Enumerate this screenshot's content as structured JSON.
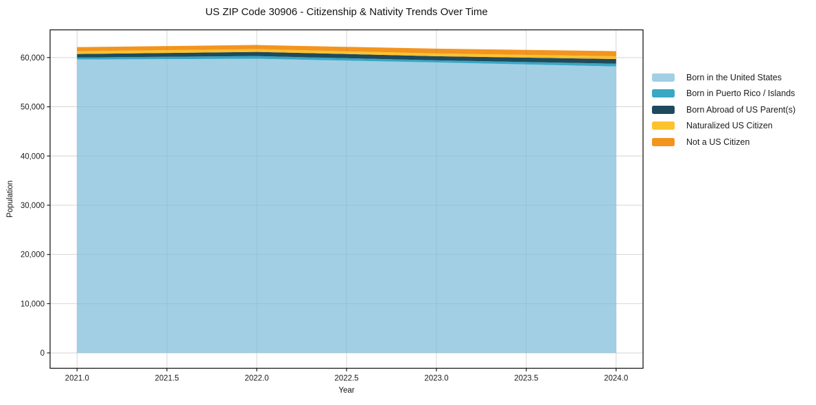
{
  "chart_data": {
    "type": "area",
    "stacked": true,
    "title": "US ZIP Code 30906 - Citizenship & Nativity Trends Over Time",
    "xlabel": "Year",
    "ylabel": "Population",
    "x": [
      2021,
      2022,
      2023,
      2024
    ],
    "series": [
      {
        "name": "Born in the United States",
        "color": "#A2CFE4",
        "values": [
          59600,
          59750,
          59000,
          58200
        ]
      },
      {
        "name": "Born in Puerto Rico / Islands",
        "color": "#38A8C5",
        "values": [
          420,
          550,
          430,
          550
        ]
      },
      {
        "name": "Born Abroad of US Parent(s)",
        "color": "#1F4A5E",
        "values": [
          700,
          850,
          850,
          950
        ]
      },
      {
        "name": "Naturalized US Citizen",
        "color": "#FCC32D",
        "values": [
          570,
          550,
          560,
          560
        ]
      },
      {
        "name": "Not a US Citizen",
        "color": "#F3941E",
        "values": [
          830,
          850,
          960,
          1040
        ]
      }
    ],
    "xlim": [
      2020.85,
      2024.15
    ],
    "ylim": [
      -3125,
      65625
    ],
    "xticks": {
      "values": [
        2021.0,
        2021.5,
        2022.0,
        2022.5,
        2023.0,
        2023.5,
        2024.0
      ],
      "labels": [
        "2021.0",
        "2021.5",
        "2022.0",
        "2022.5",
        "2023.0",
        "2023.5",
        "2024.0"
      ]
    },
    "yticks": {
      "values": [
        0,
        10000,
        20000,
        30000,
        40000,
        50000,
        60000
      ],
      "labels": [
        "0",
        "10,000",
        "20,000",
        "30,000",
        "40,000",
        "50,000",
        "60,000"
      ]
    },
    "grid": true,
    "grid_color": "#e4e4e4",
    "axis_color": "#1a1a1a",
    "background": "#ffffff",
    "legend_position": "right"
  }
}
